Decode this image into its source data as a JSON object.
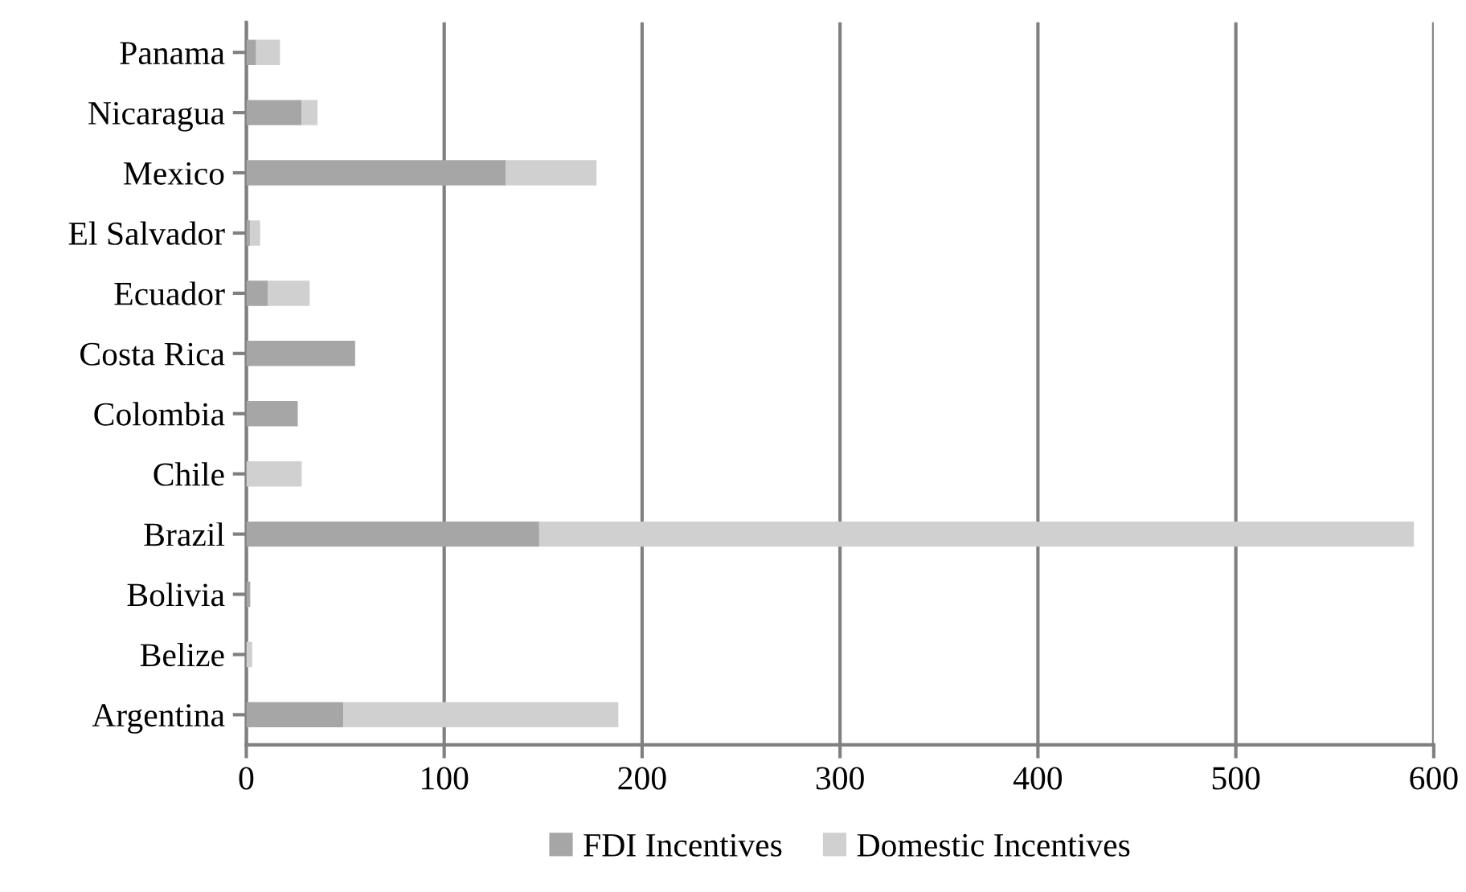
{
  "chart_data": {
    "type": "bar",
    "orientation": "horizontal",
    "stacked": true,
    "categories": [
      "Panama",
      "Nicaragua",
      "Mexico",
      "El Salvador",
      "Ecuador",
      "Costa Rica",
      "Colombia",
      "Chile",
      "Brazil",
      "Bolivia",
      "Belize",
      "Argentina"
    ],
    "series": [
      {
        "name": "FDI Incentives",
        "color": "#a6a6a6",
        "values": [
          5,
          28,
          131,
          2,
          11,
          55,
          26,
          0,
          148,
          2,
          0,
          49
        ]
      },
      {
        "name": "Domestic Incentives",
        "color": "#d0d0d0",
        "values": [
          12,
          8,
          46,
          5,
          21,
          null,
          null,
          28,
          442,
          null,
          3,
          139
        ]
      }
    ],
    "xlim": [
      0,
      600
    ],
    "xticks": [
      0,
      100,
      200,
      300,
      400,
      500,
      600
    ],
    "grid": "x",
    "legend": "bottom"
  }
}
